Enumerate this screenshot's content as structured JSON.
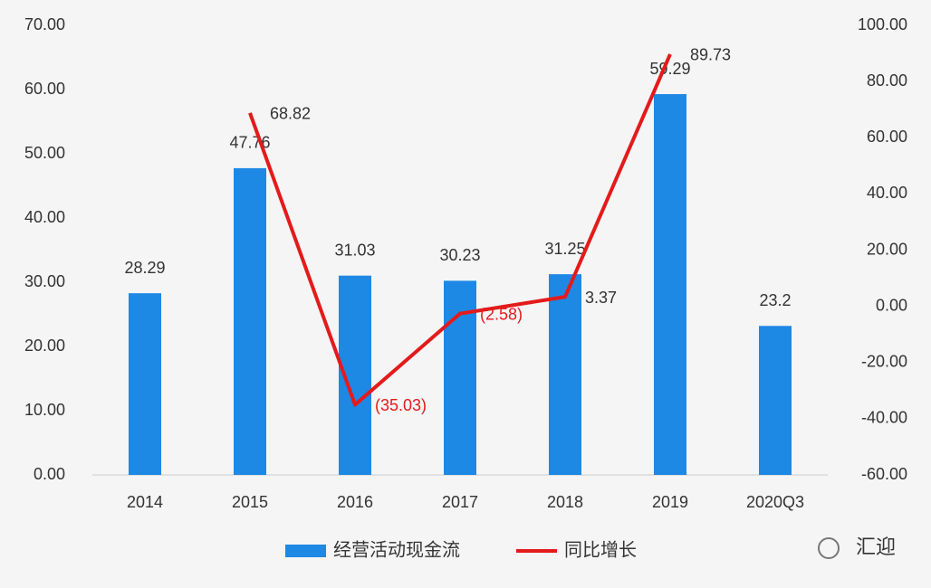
{
  "chart_data": {
    "type": "bar",
    "categories": [
      "2014",
      "2015",
      "2016",
      "2017",
      "2018",
      "2019",
      "2020Q3"
    ],
    "series": [
      {
        "name": "经营活动现金流",
        "color": "#1e88e5",
        "type": "bar",
        "values": [
          28.29,
          47.76,
          31.03,
          30.23,
          31.25,
          59.29,
          23.2
        ]
      },
      {
        "name": "同比增长",
        "color": "#e31b1b",
        "type": "line",
        "axis": "y2",
        "values": [
          null,
          68.82,
          -35.03,
          -2.58,
          3.37,
          89.73,
          null
        ],
        "value_labels": [
          null,
          "68.82",
          "(35.03)",
          "(2.58)",
          "3.37",
          "89.73",
          null
        ]
      }
    ],
    "ylim": [
      0,
      70
    ],
    "yticks": [
      {
        "value": 0,
        "label": "0.00"
      },
      {
        "value": 10,
        "label": "10.00"
      },
      {
        "value": 20,
        "label": "20.00"
      },
      {
        "value": 30,
        "label": "30.00"
      },
      {
        "value": 40,
        "label": "40.00"
      },
      {
        "value": 50,
        "label": "50.00"
      },
      {
        "value": 60,
        "label": "60.00"
      },
      {
        "value": 70,
        "label": "70.00"
      }
    ],
    "y2lim": [
      -60,
      100
    ],
    "y2ticks": [
      {
        "value": -60,
        "label": "-60.00"
      },
      {
        "value": -40,
        "label": "-40.00"
      },
      {
        "value": -20,
        "label": "-20.00"
      },
      {
        "value": 0,
        "label": "0.00"
      },
      {
        "value": 20,
        "label": "20.00"
      },
      {
        "value": 40,
        "label": "40.00"
      },
      {
        "value": 60,
        "label": "60.00"
      },
      {
        "value": 80,
        "label": "80.00"
      },
      {
        "value": 100,
        "label": "100.00"
      }
    ],
    "grid": false,
    "legend": "bottom",
    "watermark": "汇迎"
  }
}
